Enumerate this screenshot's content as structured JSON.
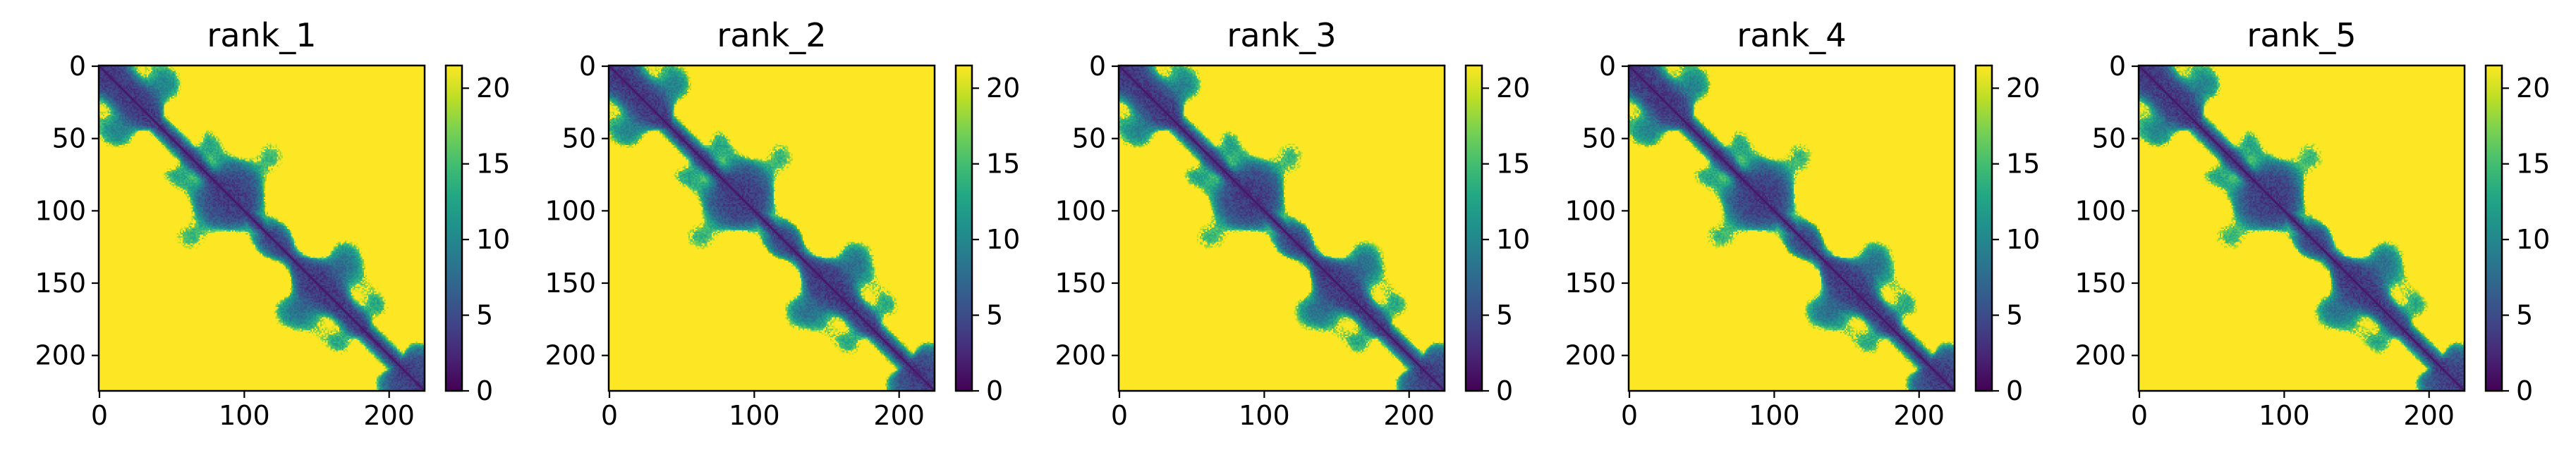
{
  "chart_data": [
    {
      "type": "heatmap",
      "title": "rank_1",
      "matrix_size": 225,
      "xticks": [
        0,
        100,
        200
      ],
      "yticks": [
        0,
        50,
        100,
        150,
        200
      ],
      "colorbar": {
        "min": 0,
        "max": 21.5,
        "ticks": [
          0,
          5,
          10,
          15,
          20
        ],
        "colormap": "viridis"
      },
      "diagonal_value": 1,
      "far_value": 21.5,
      "seed": 11
    },
    {
      "type": "heatmap",
      "title": "rank_2",
      "matrix_size": 225,
      "xticks": [
        0,
        100,
        200
      ],
      "yticks": [
        0,
        50,
        100,
        150,
        200
      ],
      "colorbar": {
        "min": 0,
        "max": 21.5,
        "ticks": [
          0,
          5,
          10,
          15,
          20
        ],
        "colormap": "viridis"
      },
      "diagonal_value": 1,
      "far_value": 21.5,
      "seed": 23
    },
    {
      "type": "heatmap",
      "title": "rank_3",
      "matrix_size": 225,
      "xticks": [
        0,
        100,
        200
      ],
      "yticks": [
        0,
        50,
        100,
        150,
        200
      ],
      "colorbar": {
        "min": 0,
        "max": 21.5,
        "ticks": [
          0,
          5,
          10,
          15,
          20
        ],
        "colormap": "viridis"
      },
      "diagonal_value": 1,
      "far_value": 21.5,
      "seed": 37
    },
    {
      "type": "heatmap",
      "title": "rank_4",
      "matrix_size": 225,
      "xticks": [
        0,
        100,
        200
      ],
      "yticks": [
        0,
        50,
        100,
        150,
        200
      ],
      "colorbar": {
        "min": 0,
        "max": 21.5,
        "ticks": [
          0,
          5,
          10,
          15,
          20
        ],
        "colormap": "viridis"
      },
      "diagonal_value": 1,
      "far_value": 21.5,
      "seed": 41
    },
    {
      "type": "heatmap",
      "title": "rank_5",
      "matrix_size": 225,
      "xticks": [
        0,
        100,
        200
      ],
      "yticks": [
        0,
        50,
        100,
        150,
        200
      ],
      "colorbar": {
        "min": 0,
        "max": 21.5,
        "ticks": [
          0,
          5,
          10,
          15,
          20
        ],
        "colormap": "viridis"
      },
      "diagonal_value": 1,
      "far_value": 21.5,
      "seed": 53
    }
  ]
}
